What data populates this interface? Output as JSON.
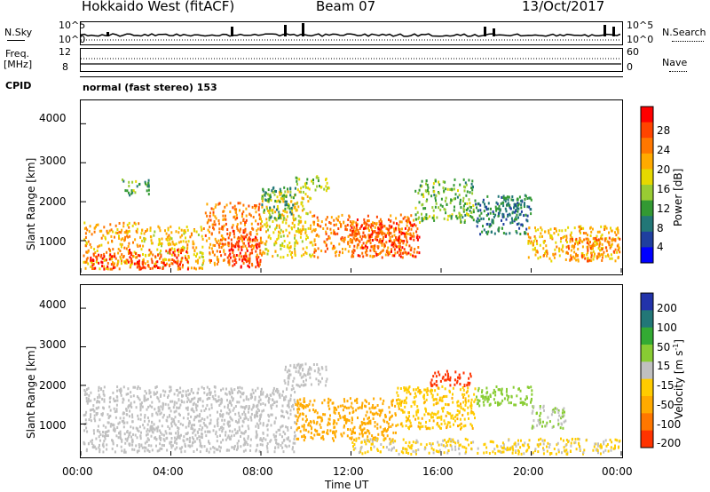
{
  "header": {
    "station": "Hokkaido West (fitACF)",
    "beam": "Beam 07",
    "date": "13/Oct/2017"
  },
  "top_panels": {
    "nsky_label": "N.Sky",
    "nsky_ticks": [
      "10^5",
      "10^0"
    ],
    "nsearch_label": "N.Search",
    "nsearch_ticks": [
      "10^5",
      "10^0"
    ],
    "freq_label": "Freq.",
    "freq_unit": "[MHz]",
    "freq_ticks": [
      "12",
      "8"
    ],
    "nave_label": "Nave",
    "nave_ticks": [
      "60",
      "0"
    ],
    "cpid_label": "CPID",
    "cpid_value": "normal (fast stereo) 153"
  },
  "axes": {
    "ylabel": "Slant Range [km]",
    "yticks": [
      "4000",
      "3000",
      "2000",
      "1000"
    ],
    "xticks": [
      "00:00",
      "04:00",
      "08:00",
      "12:00",
      "16:00",
      "20:00",
      "00:00"
    ],
    "xlabel": "Time UT"
  },
  "power_colorbar": {
    "label": "Power [dB]",
    "ticks": [
      "28",
      "24",
      "20",
      "16",
      "12",
      "8",
      "4"
    ],
    "colors": [
      "#ff0000",
      "#ff4400",
      "#ff7700",
      "#ffaa00",
      "#e6d800",
      "#99cc33",
      "#339933",
      "#227777",
      "#1f3f9f",
      "#0000ff"
    ]
  },
  "velocity_colorbar": {
    "label": "Velocity [m s",
    "label_sup": "-1",
    "label_end": "]",
    "ticks": [
      "200",
      "100",
      "50",
      "15",
      "-15",
      "-50",
      "-100",
      "-200"
    ],
    "colors": [
      "#2233aa",
      "#227777",
      "#33aa33",
      "#88cc33",
      "#c0c0c0",
      "#ffcc00",
      "#ffaa00",
      "#ff7700",
      "#ff3300"
    ]
  },
  "chart_data": {
    "type": "heatmap",
    "x_range_hours": [
      0,
      24
    ],
    "y_range_km": [
      180,
      4600
    ],
    "power_range_db": [
      0,
      30
    ],
    "velocity_range_ms": [
      -250,
      250
    ],
    "power_regions": [
      {
        "t": [
          0.1,
          2.6
        ],
        "r": [
          300,
          1500
        ],
        "level": 20
      },
      {
        "t": [
          2.6,
          5.5
        ],
        "r": [
          300,
          1400
        ],
        "level": 18
      },
      {
        "t": [
          5.5,
          8.0
        ],
        "r": [
          400,
          2000
        ],
        "level": 22
      },
      {
        "t": [
          8.0,
          10.3
        ],
        "r": [
          600,
          2300
        ],
        "level": 17
      },
      {
        "t": [
          10.3,
          14.8
        ],
        "r": [
          600,
          1700
        ],
        "level": 22
      },
      {
        "t": [
          14.8,
          17.5
        ],
        "r": [
          1500,
          2600
        ],
        "level": 12
      },
      {
        "t": [
          17.5,
          19.8
        ],
        "r": [
          1200,
          2100
        ],
        "level": 8
      },
      {
        "t": [
          19.8,
          23.9
        ],
        "r": [
          500,
          1400
        ],
        "level": 19
      },
      {
        "t": [
          0.3,
          1.5
        ],
        "r": [
          300,
          700
        ],
        "level": 29
      },
      {
        "t": [
          2.0,
          4.8
        ],
        "r": [
          300,
          800
        ],
        "level": 27
      },
      {
        "t": [
          6.5,
          8.0
        ],
        "r": [
          350,
          1300
        ],
        "level": 26
      },
      {
        "t": [
          12.0,
          15.0
        ],
        "r": [
          600,
          1600
        ],
        "level": 25
      },
      {
        "t": [
          21.5,
          23.9
        ],
        "r": [
          500,
          1100
        ],
        "level": 22
      },
      {
        "t": [
          1.8,
          3.0
        ],
        "r": [
          2200,
          2600
        ],
        "level": 12
      },
      {
        "t": [
          8.0,
          9.5
        ],
        "r": [
          1600,
          2400
        ],
        "level": 10
      },
      {
        "t": [
          9.5,
          11.0
        ],
        "r": [
          2300,
          2700
        ],
        "level": 14
      },
      {
        "t": [
          18.0,
          20.0
        ],
        "r": [
          1600,
          2200
        ],
        "level": 8
      }
    ],
    "velocity_regions": [
      {
        "t": [
          0.1,
          9.5
        ],
        "r": [
          300,
          2000
        ],
        "v": 0
      },
      {
        "t": [
          9.5,
          14.0
        ],
        "r": [
          600,
          1700
        ],
        "v": -70
      },
      {
        "t": [
          14.0,
          17.5
        ],
        "r": [
          900,
          2000
        ],
        "v": -40
      },
      {
        "t": [
          15.5,
          17.3
        ],
        "r": [
          2000,
          2400
        ],
        "v": -220
      },
      {
        "t": [
          17.5,
          20.0
        ],
        "r": [
          1500,
          2000
        ],
        "v": 35
      },
      {
        "t": [
          20.0,
          21.5
        ],
        "r": [
          900,
          1500
        ],
        "v": 15
      },
      {
        "t": [
          9.0,
          11.0
        ],
        "r": [
          2000,
          2600
        ],
        "v": 0
      },
      {
        "t": [
          12.0,
          23.9
        ],
        "r": [
          250,
          650
        ],
        "v": -20
      }
    ]
  }
}
